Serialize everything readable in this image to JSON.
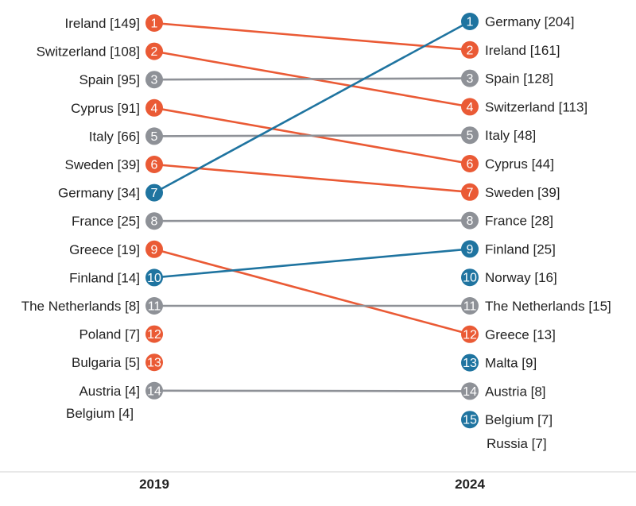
{
  "colors": {
    "up": "#1f74a0",
    "down": "#ea5a35",
    "same": "#8e9197",
    "text": "#222222",
    "divider": "#d0d0d0"
  },
  "chart_data": {
    "type": "slope",
    "left_label": "2019",
    "right_label": "2024",
    "left": [
      {
        "rank": 1,
        "name": "Ireland",
        "value": 149
      },
      {
        "rank": 2,
        "name": "Switzerland",
        "value": 108
      },
      {
        "rank": 3,
        "name": "Spain",
        "value": 95
      },
      {
        "rank": 4,
        "name": "Cyprus",
        "value": 91
      },
      {
        "rank": 5,
        "name": "Italy",
        "value": 66
      },
      {
        "rank": 6,
        "name": "Sweden",
        "value": 39
      },
      {
        "rank": 7,
        "name": "Germany",
        "value": 34
      },
      {
        "rank": 8,
        "name": "France",
        "value": 25
      },
      {
        "rank": 9,
        "name": "Greece",
        "value": 19
      },
      {
        "rank": 10,
        "name": "Finland",
        "value": 14
      },
      {
        "rank": 11,
        "name": "The Netherlands",
        "value": 8
      },
      {
        "rank": 12,
        "name": "Poland",
        "value": 7
      },
      {
        "rank": 13,
        "name": "Bulgaria",
        "value": 5
      },
      {
        "rank": 14,
        "name": "Austria",
        "value": 4
      },
      {
        "rank": null,
        "name": "Belgium",
        "value": 4
      }
    ],
    "right": [
      {
        "rank": 1,
        "name": "Germany",
        "value": 204
      },
      {
        "rank": 2,
        "name": "Ireland",
        "value": 161
      },
      {
        "rank": 3,
        "name": "Spain",
        "value": 128
      },
      {
        "rank": 4,
        "name": "Switzerland",
        "value": 113
      },
      {
        "rank": 5,
        "name": "Italy",
        "value": 48
      },
      {
        "rank": 6,
        "name": "Cyprus",
        "value": 44
      },
      {
        "rank": 7,
        "name": "Sweden",
        "value": 39
      },
      {
        "rank": 8,
        "name": "France",
        "value": 28
      },
      {
        "rank": 9,
        "name": "Finland",
        "value": 25
      },
      {
        "rank": 10,
        "name": "Norway",
        "value": 16
      },
      {
        "rank": 11,
        "name": "The Netherlands",
        "value": 15
      },
      {
        "rank": 12,
        "name": "Greece",
        "value": 13
      },
      {
        "rank": 13,
        "name": "Malta",
        "value": 9
      },
      {
        "rank": 14,
        "name": "Austria",
        "value": 8
      },
      {
        "rank": 15,
        "name": "Belgium",
        "value": 7
      },
      {
        "rank": null,
        "name": "Russia",
        "value": 7
      }
    ]
  }
}
